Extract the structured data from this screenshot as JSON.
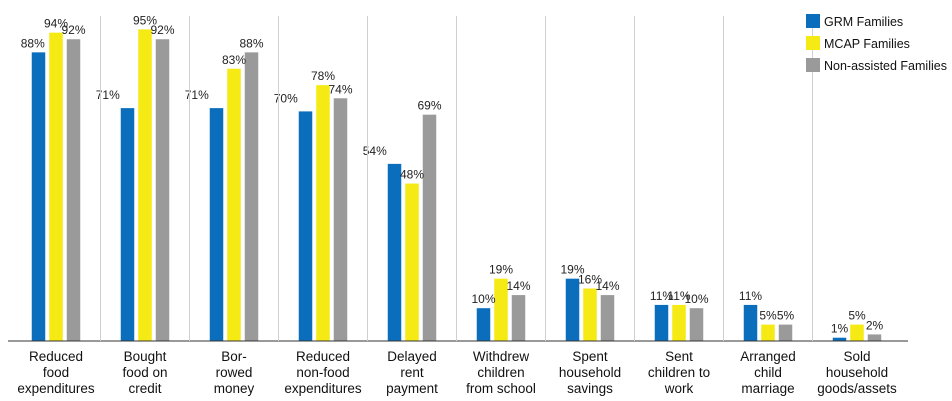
{
  "chart_data": {
    "type": "bar",
    "categories": [
      [
        "Reduced",
        "food",
        "expenditures"
      ],
      [
        "Bought",
        "food on",
        "credit"
      ],
      [
        "Bor-",
        "rowed",
        "money"
      ],
      [
        "Reduced",
        "non-food",
        "expenditures"
      ],
      [
        "Delayed",
        "rent",
        "payment"
      ],
      [
        "Withdrew",
        "children",
        "from school"
      ],
      [
        "Spent",
        "household",
        "savings"
      ],
      [
        "Sent",
        "children to",
        "work"
      ],
      [
        "Arranged",
        "child",
        "marriage"
      ],
      [
        "Sold",
        "household",
        "goods/assets"
      ]
    ],
    "series": [
      {
        "name": "GRM Families",
        "color": "#0a6ebd",
        "values": [
          88,
          71,
          71,
          70,
          54,
          10,
          19,
          11,
          11,
          1
        ]
      },
      {
        "name": "MCAP Families",
        "color": "#f5ea14",
        "values": [
          94,
          95,
          83,
          78,
          48,
          19,
          16,
          11,
          5,
          5
        ]
      },
      {
        "name": "Non-assisted Families",
        "color": "#9a9a9a",
        "values": [
          92,
          92,
          88,
          74,
          69,
          14,
          14,
          10,
          5,
          2
        ]
      }
    ],
    "value_suffix": "%",
    "ylim": [
      0,
      100
    ],
    "grid": false,
    "legend": "top-right"
  }
}
